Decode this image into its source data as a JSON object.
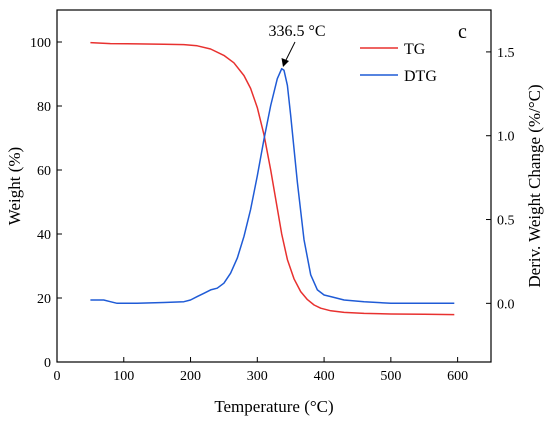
{
  "chart_data": {
    "type": "line",
    "panel_label": "c",
    "xlabel": "Temperature (°C)",
    "ylabel_left": "Weight (%)",
    "ylabel_right": "Deriv. Weight Change (%/°C)",
    "xlim": [
      0,
      650
    ],
    "ylim_left": [
      0,
      110
    ],
    "ylim_right": [
      -0.35,
      1.75
    ],
    "x_ticks": [
      0,
      100,
      200,
      300,
      400,
      500,
      600
    ],
    "y_left_ticks": [
      0,
      20,
      40,
      60,
      80,
      100
    ],
    "y_right_ticks": [
      0.0,
      0.5,
      1.0,
      1.5
    ],
    "y_right_tick_labels": [
      "0.0",
      "0.5",
      "1.0",
      "1.5"
    ],
    "grid": false,
    "legend_position": "top-right",
    "annotation": {
      "text": "336.5 °C",
      "x": 336.5,
      "y": 1.4,
      "axis": "right"
    },
    "series": [
      {
        "name": "TG",
        "axis": "left",
        "color": "#e8312f",
        "x": [
          50,
          80,
          120,
          160,
          190,
          210,
          230,
          250,
          265,
          280,
          290,
          300,
          310,
          320,
          330,
          336.5,
          345,
          355,
          365,
          375,
          385,
          395,
          410,
          430,
          460,
          500,
          550,
          595
        ],
        "y": [
          99.8,
          99.5,
          99.4,
          99.3,
          99.2,
          98.8,
          97.8,
          95.8,
          93.5,
          89.5,
          85.5,
          79.5,
          71,
          60,
          48,
          40,
          32,
          26,
          22,
          19.5,
          17.8,
          16.8,
          16.0,
          15.5,
          15.2,
          15.0,
          14.9,
          14.8
        ]
      },
      {
        "name": "DTG",
        "axis": "right",
        "color": "#1f5bd6",
        "x": [
          50,
          60,
          70,
          80,
          90,
          120,
          160,
          190,
          200,
          210,
          220,
          230,
          240,
          250,
          260,
          270,
          280,
          290,
          300,
          310,
          320,
          330,
          336.5,
          340,
          345,
          350,
          360,
          370,
          380,
          390,
          400,
          410,
          430,
          460,
          500,
          550,
          595
        ],
        "y": [
          0.02,
          0.02,
          0.02,
          0.01,
          0.0,
          0.0,
          0.005,
          0.01,
          0.02,
          0.04,
          0.06,
          0.08,
          0.09,
          0.12,
          0.18,
          0.27,
          0.4,
          0.56,
          0.76,
          0.98,
          1.18,
          1.34,
          1.4,
          1.39,
          1.3,
          1.12,
          0.72,
          0.38,
          0.17,
          0.08,
          0.05,
          0.04,
          0.02,
          0.01,
          0.0,
          0.0,
          0.0
        ]
      }
    ]
  }
}
